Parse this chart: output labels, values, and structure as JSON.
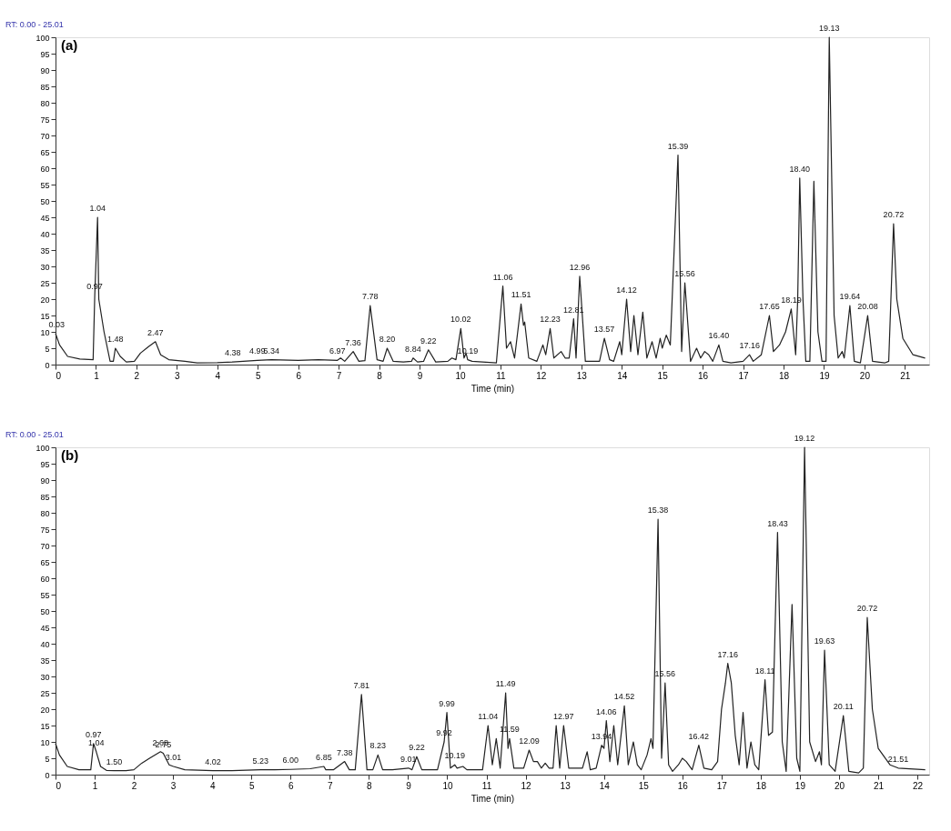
{
  "chart_data": [
    {
      "type": "line",
      "title": "(a)",
      "xlabel": "Time (min)",
      "xlim": [
        0,
        21.6
      ],
      "ylim": [
        0,
        100
      ],
      "xticks": [
        0,
        1,
        2,
        3,
        4,
        5,
        6,
        7,
        8,
        9,
        10,
        11,
        12,
        13,
        14,
        15,
        16,
        17,
        18,
        19,
        20,
        21
      ],
      "yticks": [
        0,
        5,
        10,
        15,
        20,
        25,
        30,
        35,
        40,
        45,
        50,
        55,
        60,
        65,
        70,
        75,
        80,
        85,
        90,
        95,
        100
      ],
      "grid": false,
      "marker": "none",
      "line_style": "solid",
      "series": [
        {
          "color": "#222222",
          "x": [
            0,
            0.1,
            0.3,
            0.6,
            0.93,
            0.97,
            1.04,
            1.07,
            1.2,
            1.35,
            1.43,
            1.48,
            1.6,
            1.75,
            1.95,
            2.1,
            2.3,
            2.47,
            2.6,
            2.8,
            3.2,
            3.5,
            4.0,
            4.38,
            4.99,
            5.34,
            6.0,
            6.5,
            6.97,
            7.05,
            7.15,
            7.36,
            7.5,
            7.65,
            7.78,
            7.95,
            8.1,
            8.2,
            8.35,
            8.6,
            8.8,
            8.84,
            8.95,
            9.1,
            9.22,
            9.4,
            9.7,
            9.8,
            9.9,
            10.02,
            10.1,
            10.15,
            10.19,
            10.3,
            10.9,
            11.06,
            11.15,
            11.25,
            11.35,
            11.51,
            11.57,
            11.6,
            11.7,
            11.9,
            12.05,
            12.12,
            12.23,
            12.32,
            12.5,
            12.6,
            12.7,
            12.81,
            12.87,
            12.96,
            13.1,
            13.45,
            13.57,
            13.7,
            13.8,
            13.95,
            14.0,
            14.12,
            14.22,
            14.3,
            14.4,
            14.52,
            14.62,
            14.75,
            14.85,
            14.95,
            15.0,
            15.1,
            15.2,
            15.39,
            15.48,
            15.56,
            15.7,
            15.85,
            15.95,
            16.05,
            16.15,
            16.25,
            16.4,
            16.5,
            16.7,
            17.0,
            17.16,
            17.25,
            17.45,
            17.65,
            17.75,
            17.9,
            18.05,
            18.19,
            18.3,
            18.35,
            18.4,
            18.48,
            18.55,
            18.65,
            18.75,
            18.85,
            18.95,
            19.05,
            19.13,
            19.25,
            19.35,
            19.45,
            19.5,
            19.64,
            19.75,
            19.9,
            20.08,
            20.2,
            20.5,
            20.6,
            20.72,
            20.8,
            20.95,
            21.2,
            21.5
          ],
          "values": [
            9.5,
            6,
            2.5,
            1.7,
            1.5,
            21,
            45,
            20,
            10,
            1,
            1,
            5,
            2.5,
            0.8,
            1,
            3.5,
            5.5,
            7,
            3,
            1.5,
            1,
            0.5,
            0.6,
            0.8,
            1.3,
            1.5,
            1.3,
            1.5,
            1.3,
            2,
            1,
            4,
            1,
            1.2,
            18,
            1.5,
            1,
            5,
            1,
            0.8,
            1,
            2,
            0.8,
            1,
            4.5,
            0.8,
            1,
            2,
            1.5,
            11,
            2,
            3.5,
            1.5,
            1,
            0.5,
            24,
            5,
            7,
            2,
            18.5,
            12,
            13,
            2,
            1,
            6,
            3,
            11,
            2,
            4,
            2,
            2,
            14,
            2,
            27,
            1,
            1,
            8,
            1.5,
            1,
            7,
            3,
            20,
            4,
            15,
            3,
            16,
            2,
            7,
            2,
            8,
            5,
            9,
            6,
            64,
            4,
            25,
            1,
            5,
            2,
            4,
            3,
            1,
            6,
            1,
            0.5,
            1,
            3,
            1,
            3,
            15,
            4,
            6,
            10,
            17,
            3,
            20,
            57,
            20,
            1,
            1,
            56,
            10,
            1,
            1,
            100,
            15,
            2,
            4,
            2,
            18,
            1,
            0.5,
            15,
            1,
            0.5,
            1,
            43,
            20,
            8,
            3,
            2
          ]
        }
      ],
      "annotations": [
        "RT: 0.00 - 25.01",
        {
          "text": "0.03",
          "x": 0.03,
          "y": 9.5
        },
        {
          "text": "0.97",
          "x": 0.97,
          "y": 21
        },
        {
          "text": "1.04",
          "x": 1.04,
          "y": 45
        },
        {
          "text": "1.48",
          "x": 1.48,
          "y": 5
        },
        {
          "text": "2.47",
          "x": 2.47,
          "y": 7
        },
        {
          "text": "4.38",
          "x": 4.38,
          "y": 0.8
        },
        {
          "text": "4.99",
          "x": 4.99,
          "y": 1.3
        },
        {
          "text": "5.34",
          "x": 5.34,
          "y": 1.5
        },
        {
          "text": "6.97",
          "x": 6.97,
          "y": 1.3
        },
        {
          "text": "7.36",
          "x": 7.36,
          "y": 4
        },
        {
          "text": "7.78",
          "x": 7.78,
          "y": 18
        },
        {
          "text": "8.20",
          "x": 8.2,
          "y": 5
        },
        {
          "text": "8.84",
          "x": 8.84,
          "y": 2
        },
        {
          "text": "9.22",
          "x": 9.22,
          "y": 4.5
        },
        {
          "text": "10.02",
          "x": 10.02,
          "y": 11
        },
        {
          "text": "10.19",
          "x": 10.19,
          "y": 1.5
        },
        {
          "text": "11.06",
          "x": 11.06,
          "y": 24
        },
        {
          "text": "11.51",
          "x": 11.51,
          "y": 18.5
        },
        {
          "text": "12.23",
          "x": 12.23,
          "y": 11
        },
        {
          "text": "12.81",
          "x": 12.81,
          "y": 14
        },
        {
          "text": "12.96",
          "x": 12.96,
          "y": 27
        },
        {
          "text": "13.57",
          "x": 13.57,
          "y": 8
        },
        {
          "text": "14.12",
          "x": 14.12,
          "y": 20
        },
        {
          "text": "15.39",
          "x": 15.39,
          "y": 64
        },
        {
          "text": "15.56",
          "x": 15.56,
          "y": 25
        },
        {
          "text": "16.40",
          "x": 16.4,
          "y": 6
        },
        {
          "text": "17.16",
          "x": 17.16,
          "y": 3
        },
        {
          "text": "17.65",
          "x": 17.65,
          "y": 15
        },
        {
          "text": "18.19",
          "x": 18.19,
          "y": 17
        },
        {
          "text": "18.40",
          "x": 18.4,
          "y": 57
        },
        {
          "text": "19.13",
          "x": 19.13,
          "y": 100
        },
        {
          "text": "19.64",
          "x": 19.64,
          "y": 18
        },
        {
          "text": "20.08",
          "x": 20.08,
          "y": 15
        },
        {
          "text": "20.72",
          "x": 20.72,
          "y": 43
        }
      ]
    },
    {
      "type": "line",
      "title": "(b)",
      "xlabel": "Time (min)",
      "xlim": [
        0,
        22.3
      ],
      "ylim": [
        0,
        100
      ],
      "xticks": [
        0,
        1,
        2,
        3,
        4,
        5,
        6,
        7,
        8,
        9,
        10,
        11,
        12,
        13,
        14,
        15,
        16,
        17,
        18,
        19,
        20,
        21,
        22
      ],
      "yticks": [
        0,
        5,
        10,
        15,
        20,
        25,
        30,
        35,
        40,
        45,
        50,
        55,
        60,
        65,
        70,
        75,
        80,
        85,
        90,
        95,
        100
      ],
      "grid": false,
      "marker": "none",
      "line_style": "solid",
      "series": [
        {
          "color": "#222222",
          "x": [
            0,
            0.1,
            0.3,
            0.6,
            0.9,
            0.97,
            1.04,
            1.15,
            1.3,
            1.5,
            1.8,
            2.0,
            2.2,
            2.4,
            2.68,
            2.75,
            2.9,
            3.01,
            3.3,
            4.02,
            4.5,
            5.23,
            5.6,
            6.0,
            6.5,
            6.85,
            6.9,
            7.1,
            7.38,
            7.5,
            7.65,
            7.81,
            7.95,
            8.1,
            8.23,
            8.35,
            8.6,
            9.01,
            9.1,
            9.22,
            9.35,
            9.75,
            9.92,
            9.99,
            10.08,
            10.19,
            10.25,
            10.4,
            10.5,
            10.9,
            11.04,
            11.15,
            11.25,
            11.35,
            11.49,
            11.55,
            11.59,
            11.7,
            11.95,
            12.09,
            12.2,
            12.3,
            12.4,
            12.5,
            12.6,
            12.7,
            12.78,
            12.87,
            12.97,
            13.1,
            13.45,
            13.57,
            13.65,
            13.8,
            13.94,
            14.0,
            14.06,
            14.15,
            14.25,
            14.35,
            14.52,
            14.62,
            14.75,
            14.85,
            14.95,
            15.1,
            15.2,
            15.25,
            15.38,
            15.47,
            15.56,
            15.65,
            15.75,
            15.9,
            16.0,
            16.1,
            16.25,
            16.42,
            16.55,
            16.75,
            16.9,
            17.0,
            17.1,
            17.16,
            17.25,
            17.35,
            17.45,
            17.55,
            17.65,
            17.75,
            17.85,
            17.95,
            18.11,
            18.2,
            18.3,
            18.43,
            18.55,
            18.65,
            18.8,
            18.92,
            19.0,
            19.12,
            19.25,
            19.4,
            19.5,
            19.55,
            19.63,
            19.75,
            19.9,
            20.11,
            20.25,
            20.5,
            20.62,
            20.72,
            20.85,
            21.0,
            21.3,
            21.51,
            22.2
          ],
          "values": [
            9.5,
            6,
            2.5,
            1.5,
            1.5,
            9.5,
            7,
            2.5,
            1.3,
            1.2,
            1.2,
            1.5,
            3.5,
            5,
            7,
            6.5,
            3,
            2.5,
            1.5,
            1.2,
            1.2,
            1.5,
            1.5,
            1.6,
            1.8,
            2.5,
            1.5,
            1.5,
            4,
            1.5,
            1.5,
            24.5,
            1.5,
            1.5,
            6,
            1.5,
            1.5,
            2,
            1.5,
            5.5,
            1.5,
            1.5,
            10,
            19,
            2,
            3,
            2,
            2.5,
            1.5,
            1.5,
            15,
            3,
            11,
            2,
            25,
            8,
            11,
            2,
            2,
            7.5,
            4,
            4,
            2,
            3.5,
            2,
            2,
            15,
            2,
            15,
            2,
            2,
            7,
            1.5,
            2,
            9,
            8,
            16.5,
            4,
            15,
            3,
            21,
            3,
            10,
            3,
            1.5,
            6,
            11,
            8,
            78,
            5,
            28,
            3,
            1,
            3,
            5,
            4,
            1.5,
            9,
            2,
            1.5,
            4,
            20,
            28,
            34,
            28,
            12,
            3,
            19,
            2,
            10,
            3,
            1.5,
            29,
            12,
            13,
            74,
            10,
            1,
            52,
            5,
            1,
            100,
            10,
            4,
            7,
            3,
            38,
            3,
            1,
            18,
            1,
            0.5,
            2,
            48,
            20,
            8,
            3,
            2,
            1.5
          ]
        }
      ],
      "annotations": [
        "RT: 0.00 - 25.01",
        {
          "text": "0.97",
          "x": 0.97,
          "y": 9.5
        },
        {
          "text": "1.04",
          "x": 1.04,
          "y": 7
        },
        {
          "text": "1.50",
          "x": 1.5,
          "y": 1.2
        },
        {
          "text": "2.68",
          "x": 2.68,
          "y": 7
        },
        {
          "text": "2.75",
          "x": 2.75,
          "y": 6.5
        },
        {
          "text": "3.01",
          "x": 3.01,
          "y": 2.5
        },
        {
          "text": "4.02",
          "x": 4.02,
          "y": 1.2
        },
        {
          "text": "5.23",
          "x": 5.23,
          "y": 1.5
        },
        {
          "text": "6.00",
          "x": 6.0,
          "y": 1.6
        },
        {
          "text": "6.85",
          "x": 6.85,
          "y": 2.5
        },
        {
          "text": "7.38",
          "x": 7.38,
          "y": 4
        },
        {
          "text": "7.81",
          "x": 7.81,
          "y": 24.5
        },
        {
          "text": "8.23",
          "x": 8.23,
          "y": 6
        },
        {
          "text": "9.01",
          "x": 9.01,
          "y": 2
        },
        {
          "text": "9.22",
          "x": 9.22,
          "y": 5.5
        },
        {
          "text": "9.92",
          "x": 9.92,
          "y": 10
        },
        {
          "text": "9.99",
          "x": 9.99,
          "y": 19
        },
        {
          "text": "10.19",
          "x": 10.19,
          "y": 3
        },
        {
          "text": "11.04",
          "x": 11.04,
          "y": 15
        },
        {
          "text": "11.49",
          "x": 11.49,
          "y": 25
        },
        {
          "text": "11.59",
          "x": 11.59,
          "y": 11
        },
        {
          "text": "12.09",
          "x": 12.09,
          "y": 7.5
        },
        {
          "text": "12.97",
          "x": 12.97,
          "y": 15
        },
        {
          "text": "13.94",
          "x": 13.94,
          "y": 9
        },
        {
          "text": "14.06",
          "x": 14.06,
          "y": 16.5
        },
        {
          "text": "14.52",
          "x": 14.52,
          "y": 21
        },
        {
          "text": "15.38",
          "x": 15.38,
          "y": 78
        },
        {
          "text": "15.56",
          "x": 15.56,
          "y": 28
        },
        {
          "text": "16.42",
          "x": 16.42,
          "y": 9
        },
        {
          "text": "17.16",
          "x": 17.16,
          "y": 34
        },
        {
          "text": "18.11",
          "x": 18.11,
          "y": 29
        },
        {
          "text": "18.43",
          "x": 18.43,
          "y": 74
        },
        {
          "text": "19.12",
          "x": 19.12,
          "y": 100
        },
        {
          "text": "19.63",
          "x": 19.63,
          "y": 38
        },
        {
          "text": "20.11",
          "x": 20.11,
          "y": 18
        },
        {
          "text": "20.72",
          "x": 20.72,
          "y": 48
        },
        {
          "text": "21.51",
          "x": 21.51,
          "y": 2
        }
      ]
    }
  ]
}
